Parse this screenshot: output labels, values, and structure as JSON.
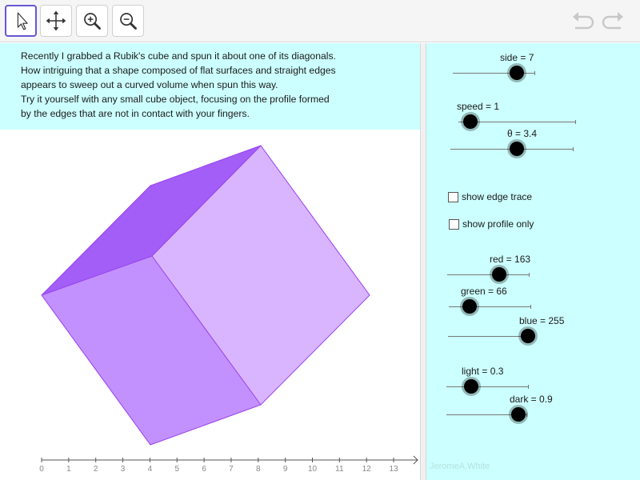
{
  "toolbar": {
    "tools": [
      {
        "name": "move-tool",
        "icon": "arrow-pointer-icon",
        "active": true
      },
      {
        "name": "move-graphics-view-tool",
        "icon": "four-way-arrow-icon",
        "active": false
      },
      {
        "name": "zoom-in-tool",
        "icon": "zoom-in-icon",
        "active": false
      },
      {
        "name": "zoom-out-tool",
        "icon": "zoom-out-icon",
        "active": false
      }
    ],
    "undo_icon": "undo-icon",
    "redo_icon": "redo-icon"
  },
  "description": {
    "lines": [
      "Recently I grabbed a Rubik's cube and spun it about one of its diagonals.",
      "How intriguing that a shape composed of flat surfaces and straight edges",
      "appears to sweep out a curved volume when spun this way.",
      "Try it yourself with any small cube object, focusing on the profile formed",
      "by the edges that are not in contact with your fingers."
    ]
  },
  "axis": {
    "ticks": [
      "0",
      "1",
      "2",
      "3",
      "4",
      "5",
      "6",
      "7",
      "8",
      "9",
      "10",
      "11",
      "12",
      "13"
    ]
  },
  "cube": {
    "colors": {
      "top": "#a25ef6",
      "left": "#c291fd",
      "right": "#d9b5ff",
      "edge": "#9a40f0"
    }
  },
  "sliders": {
    "side": {
      "label": "side = 7",
      "value": 7,
      "min": 0,
      "max": 8.9
    },
    "speed": {
      "label": "speed = 1",
      "value": 1,
      "min": 0,
      "max": 10
    },
    "theta": {
      "label": "θ = 3.4",
      "value": 3.4,
      "min": 0,
      "max": 6.28
    },
    "red": {
      "label": "red = 163",
      "value": 163,
      "min": 0,
      "max": 255
    },
    "green": {
      "label": "green = 66",
      "value": 66,
      "min": 0,
      "max": 255
    },
    "blue": {
      "label": "blue = 255",
      "value": 255,
      "min": 0,
      "max": 255
    },
    "light": {
      "label": "light = 0.3",
      "value": 0.3,
      "min": 0,
      "max": 1
    },
    "dark": {
      "label": "dark = 0.9",
      "value": 0.9,
      "min": 0,
      "max": 1
    }
  },
  "checkboxes": {
    "edge_trace": {
      "label": "show edge trace",
      "checked": false
    },
    "profile_only": {
      "label": "show profile only",
      "checked": false
    }
  },
  "credit": "JeromeA.White"
}
